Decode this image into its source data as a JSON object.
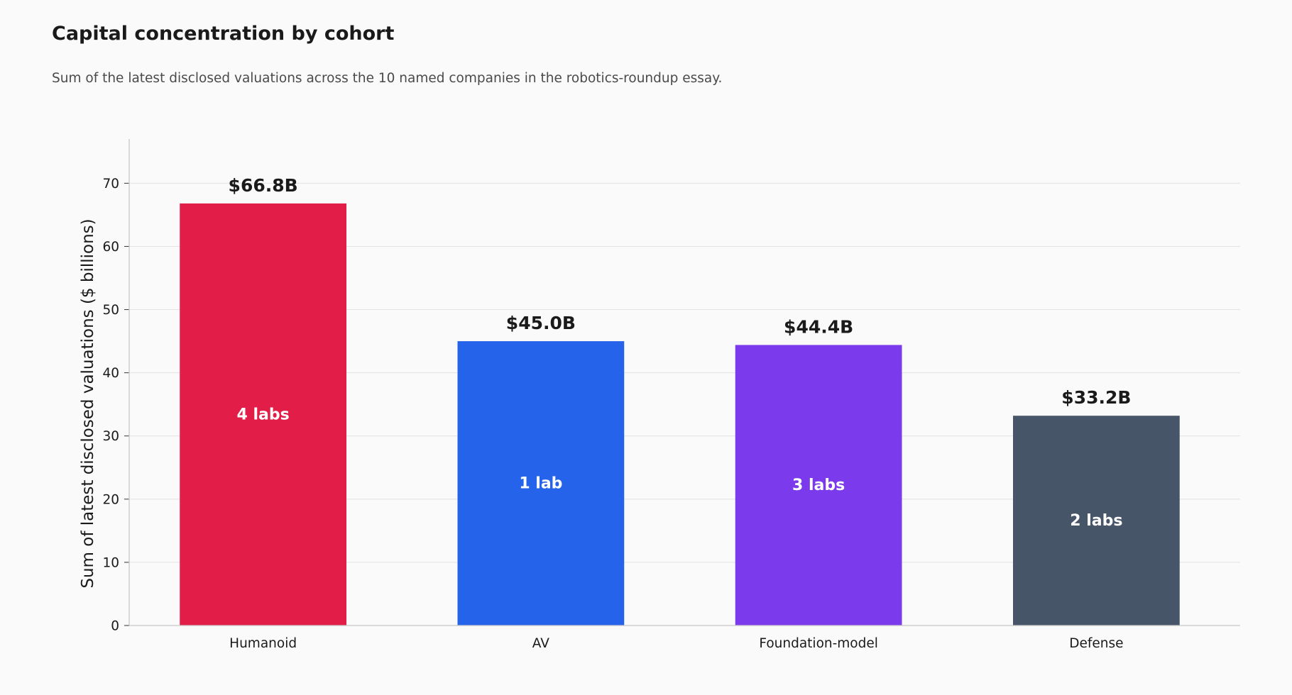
{
  "chart_data": {
    "type": "bar",
    "title": "Capital concentration by cohort",
    "subtitle": "Sum of the latest disclosed valuations across the 10 named companies in the robotics-roundup essay.",
    "xlabel": "",
    "ylabel": "Sum of latest disclosed valuations ($ billions)",
    "ylim": [
      0,
      77
    ],
    "yticks": [
      0,
      10,
      20,
      30,
      40,
      50,
      60,
      70
    ],
    "grid": true,
    "categories": [
      "Humanoid",
      "AV",
      "Foundation-model",
      "Defense"
    ],
    "values": [
      66.8,
      45.0,
      44.4,
      33.2
    ],
    "value_labels": [
      "$66.8B",
      "$45.0B",
      "$44.4B",
      "$33.2B"
    ],
    "inner_labels": [
      "4 labs",
      "1 lab",
      "3 labs",
      "2 labs"
    ],
    "colors": [
      "#e11d48",
      "#2563eb",
      "#7c3aed",
      "#475569"
    ]
  }
}
